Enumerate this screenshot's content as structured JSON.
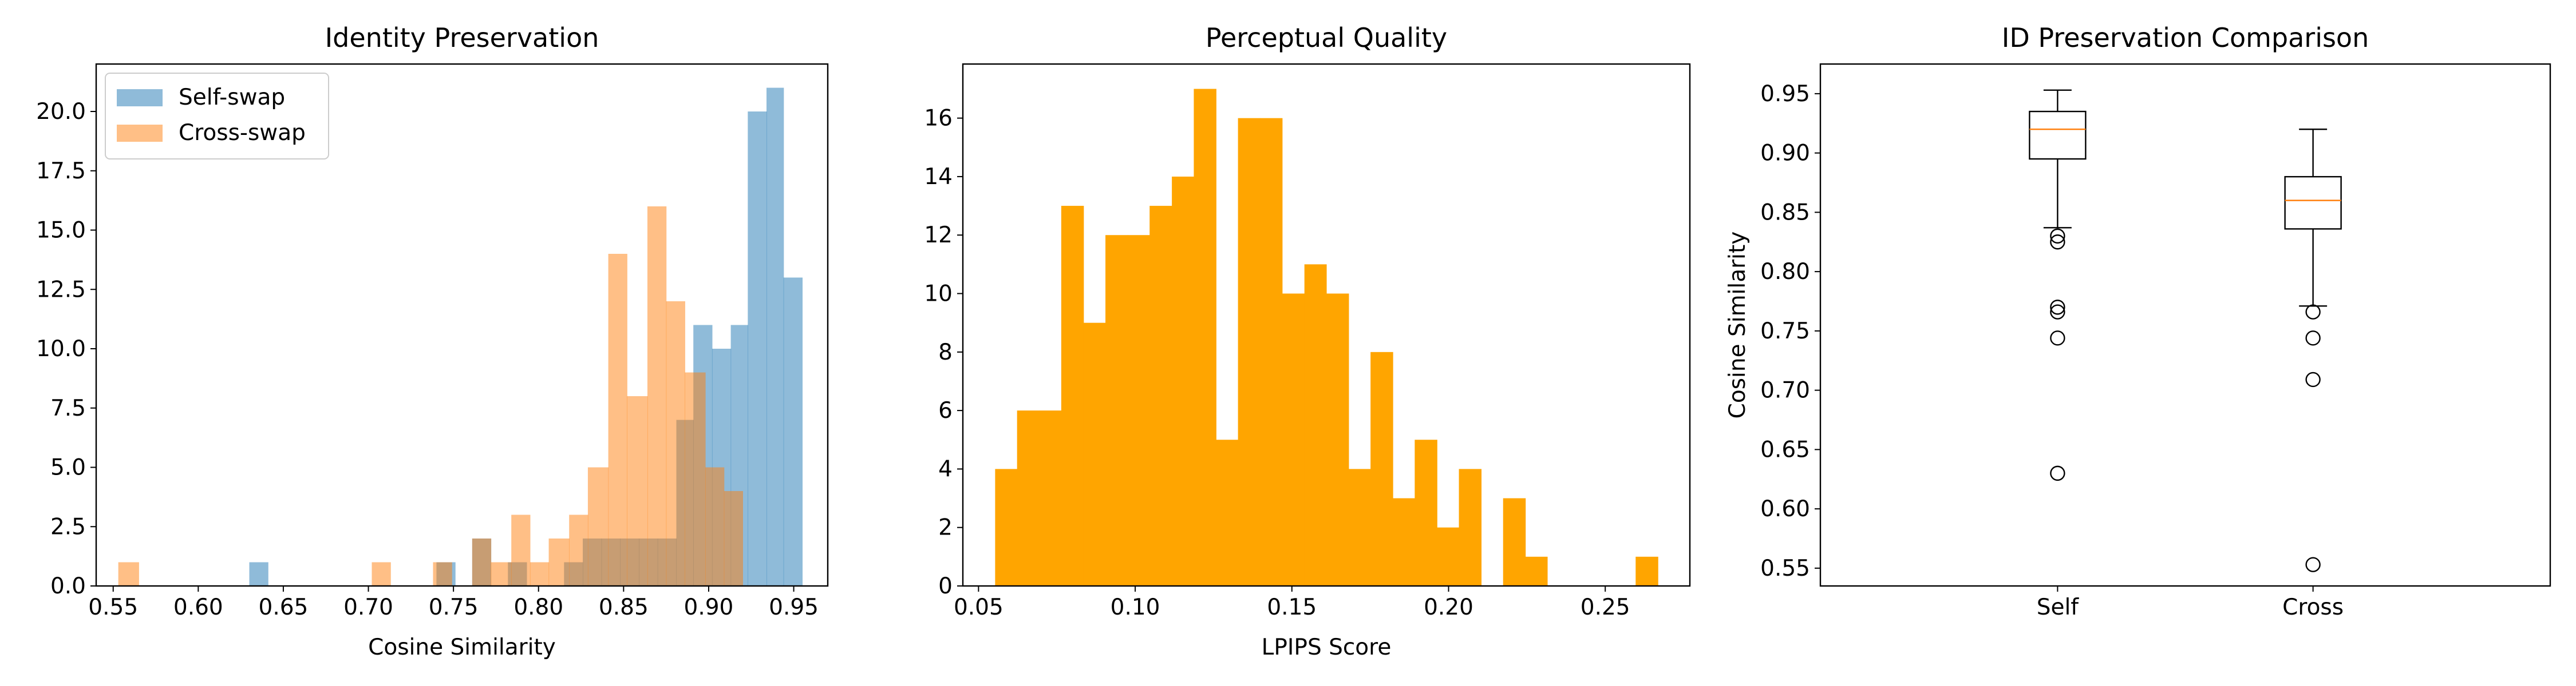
{
  "chart_data": [
    {
      "type": "histogram",
      "title": "Identity Preservation",
      "xlabel": "Cosine Similarity",
      "ylabel": "",
      "xlim": [
        0.54,
        0.97
      ],
      "ylim": [
        0,
        22
      ],
      "xticks": [
        "0.55",
        "0.60",
        "0.65",
        "0.70",
        "0.75",
        "0.80",
        "0.85",
        "0.90",
        "0.95"
      ],
      "yticks": [
        "0.0",
        "2.5",
        "5.0",
        "7.5",
        "10.0",
        "12.5",
        "15.0",
        "17.5",
        "20.0"
      ],
      "legend_position": "top-left",
      "series": [
        {
          "name": "Self-swap",
          "color": "#1f77b4",
          "alpha": 0.5,
          "bins": [
            [
              0.63,
              0.641,
              1
            ],
            [
              0.74,
              0.751,
              1
            ],
            [
              0.761,
              0.772,
              2
            ],
            [
              0.782,
              0.793,
              1
            ],
            [
              0.815,
              0.826,
              1
            ],
            [
              0.826,
              0.837,
              2
            ],
            [
              0.837,
              0.848,
              2
            ],
            [
              0.848,
              0.859,
              2
            ],
            [
              0.859,
              0.87,
              2
            ],
            [
              0.87,
              0.881,
              2
            ],
            [
              0.881,
              0.891,
              7
            ],
            [
              0.891,
              0.902,
              11
            ],
            [
              0.902,
              0.913,
              10
            ],
            [
              0.913,
              0.923,
              11
            ],
            [
              0.923,
              0.934,
              20
            ],
            [
              0.934,
              0.944,
              21
            ],
            [
              0.944,
              0.955,
              13
            ]
          ]
        },
        {
          "name": "Cross-swap",
          "color": "#ff7f0e",
          "alpha": 0.5,
          "bins": [
            [
              0.553,
              0.565,
              1
            ],
            [
              0.702,
              0.713,
              1
            ],
            [
              0.738,
              0.749,
              1
            ],
            [
              0.761,
              0.772,
              2
            ],
            [
              0.772,
              0.784,
              1
            ],
            [
              0.784,
              0.795,
              3
            ],
            [
              0.795,
              0.806,
              1
            ],
            [
              0.806,
              0.818,
              2
            ],
            [
              0.818,
              0.829,
              3
            ],
            [
              0.829,
              0.841,
              5
            ],
            [
              0.841,
              0.852,
              14
            ],
            [
              0.852,
              0.864,
              8
            ],
            [
              0.864,
              0.875,
              16
            ],
            [
              0.875,
              0.886,
              12
            ],
            [
              0.886,
              0.898,
              9
            ],
            [
              0.898,
              0.909,
              5
            ],
            [
              0.909,
              0.92,
              4
            ]
          ]
        }
      ]
    },
    {
      "type": "histogram",
      "title": "Perceptual Quality",
      "xlabel": "LPIPS Score",
      "ylabel": "",
      "xlim": [
        0.045,
        0.277
      ],
      "ylim": [
        0,
        17.85
      ],
      "xticks": [
        "0.05",
        "0.10",
        "0.15",
        "0.20",
        "0.25"
      ],
      "yticks": [
        "0",
        "2",
        "4",
        "6",
        "8",
        "10",
        "12",
        "14",
        "16"
      ],
      "series": [
        {
          "name": "",
          "color": "#ffa500",
          "bins": [
            [
              0.0553,
              0.0623,
              4
            ],
            [
              0.0623,
              0.0694,
              6
            ],
            [
              0.0694,
              0.0764,
              6
            ],
            [
              0.0764,
              0.0835,
              13
            ],
            [
              0.0835,
              0.0905,
              9
            ],
            [
              0.0905,
              0.0976,
              12
            ],
            [
              0.0976,
              0.1046,
              12
            ],
            [
              0.1046,
              0.1117,
              13
            ],
            [
              0.1117,
              0.1187,
              14
            ],
            [
              0.1187,
              0.1258,
              17
            ],
            [
              0.1258,
              0.1328,
              5
            ],
            [
              0.1328,
              0.1399,
              16
            ],
            [
              0.1399,
              0.1469,
              16
            ],
            [
              0.1469,
              0.154,
              10
            ],
            [
              0.154,
              0.161,
              11
            ],
            [
              0.161,
              0.1681,
              10
            ],
            [
              0.1681,
              0.1751,
              4
            ],
            [
              0.1751,
              0.1822,
              8
            ],
            [
              0.1822,
              0.1892,
              3
            ],
            [
              0.1892,
              0.1963,
              5
            ],
            [
              0.1963,
              0.2033,
              2
            ],
            [
              0.2033,
              0.2104,
              4
            ],
            [
              0.2104,
              0.2174,
              0
            ],
            [
              0.2174,
              0.2245,
              3
            ],
            [
              0.2245,
              0.2315,
              1
            ],
            [
              0.2315,
              0.2386,
              0
            ],
            [
              0.2386,
              0.2456,
              0
            ],
            [
              0.2456,
              0.2527,
              0
            ],
            [
              0.2527,
              0.2597,
              0
            ],
            [
              0.2597,
              0.2668,
              1
            ]
          ]
        }
      ]
    },
    {
      "type": "box",
      "title": "ID Preservation Comparison",
      "xlabel": "",
      "ylabel": "Cosine Similarity",
      "ylim": [
        0.535,
        0.975
      ],
      "yticks": [
        "0.55",
        "0.60",
        "0.65",
        "0.70",
        "0.75",
        "0.80",
        "0.85",
        "0.90",
        "0.95"
      ],
      "categories": [
        "Self",
        "Cross"
      ],
      "median_color": "#ff7f0e",
      "boxes": [
        {
          "name": "Self",
          "whisker_low": 0.837,
          "q1": 0.895,
          "median": 0.92,
          "q3": 0.935,
          "whisker_high": 0.953,
          "outliers": [
            0.83,
            0.825,
            0.77,
            0.766,
            0.744,
            0.63
          ]
        },
        {
          "name": "Cross",
          "whisker_low": 0.771,
          "q1": 0.836,
          "median": 0.86,
          "q3": 0.88,
          "whisker_high": 0.92,
          "outliers": [
            0.766,
            0.744,
            0.709,
            0.553
          ]
        }
      ]
    }
  ]
}
